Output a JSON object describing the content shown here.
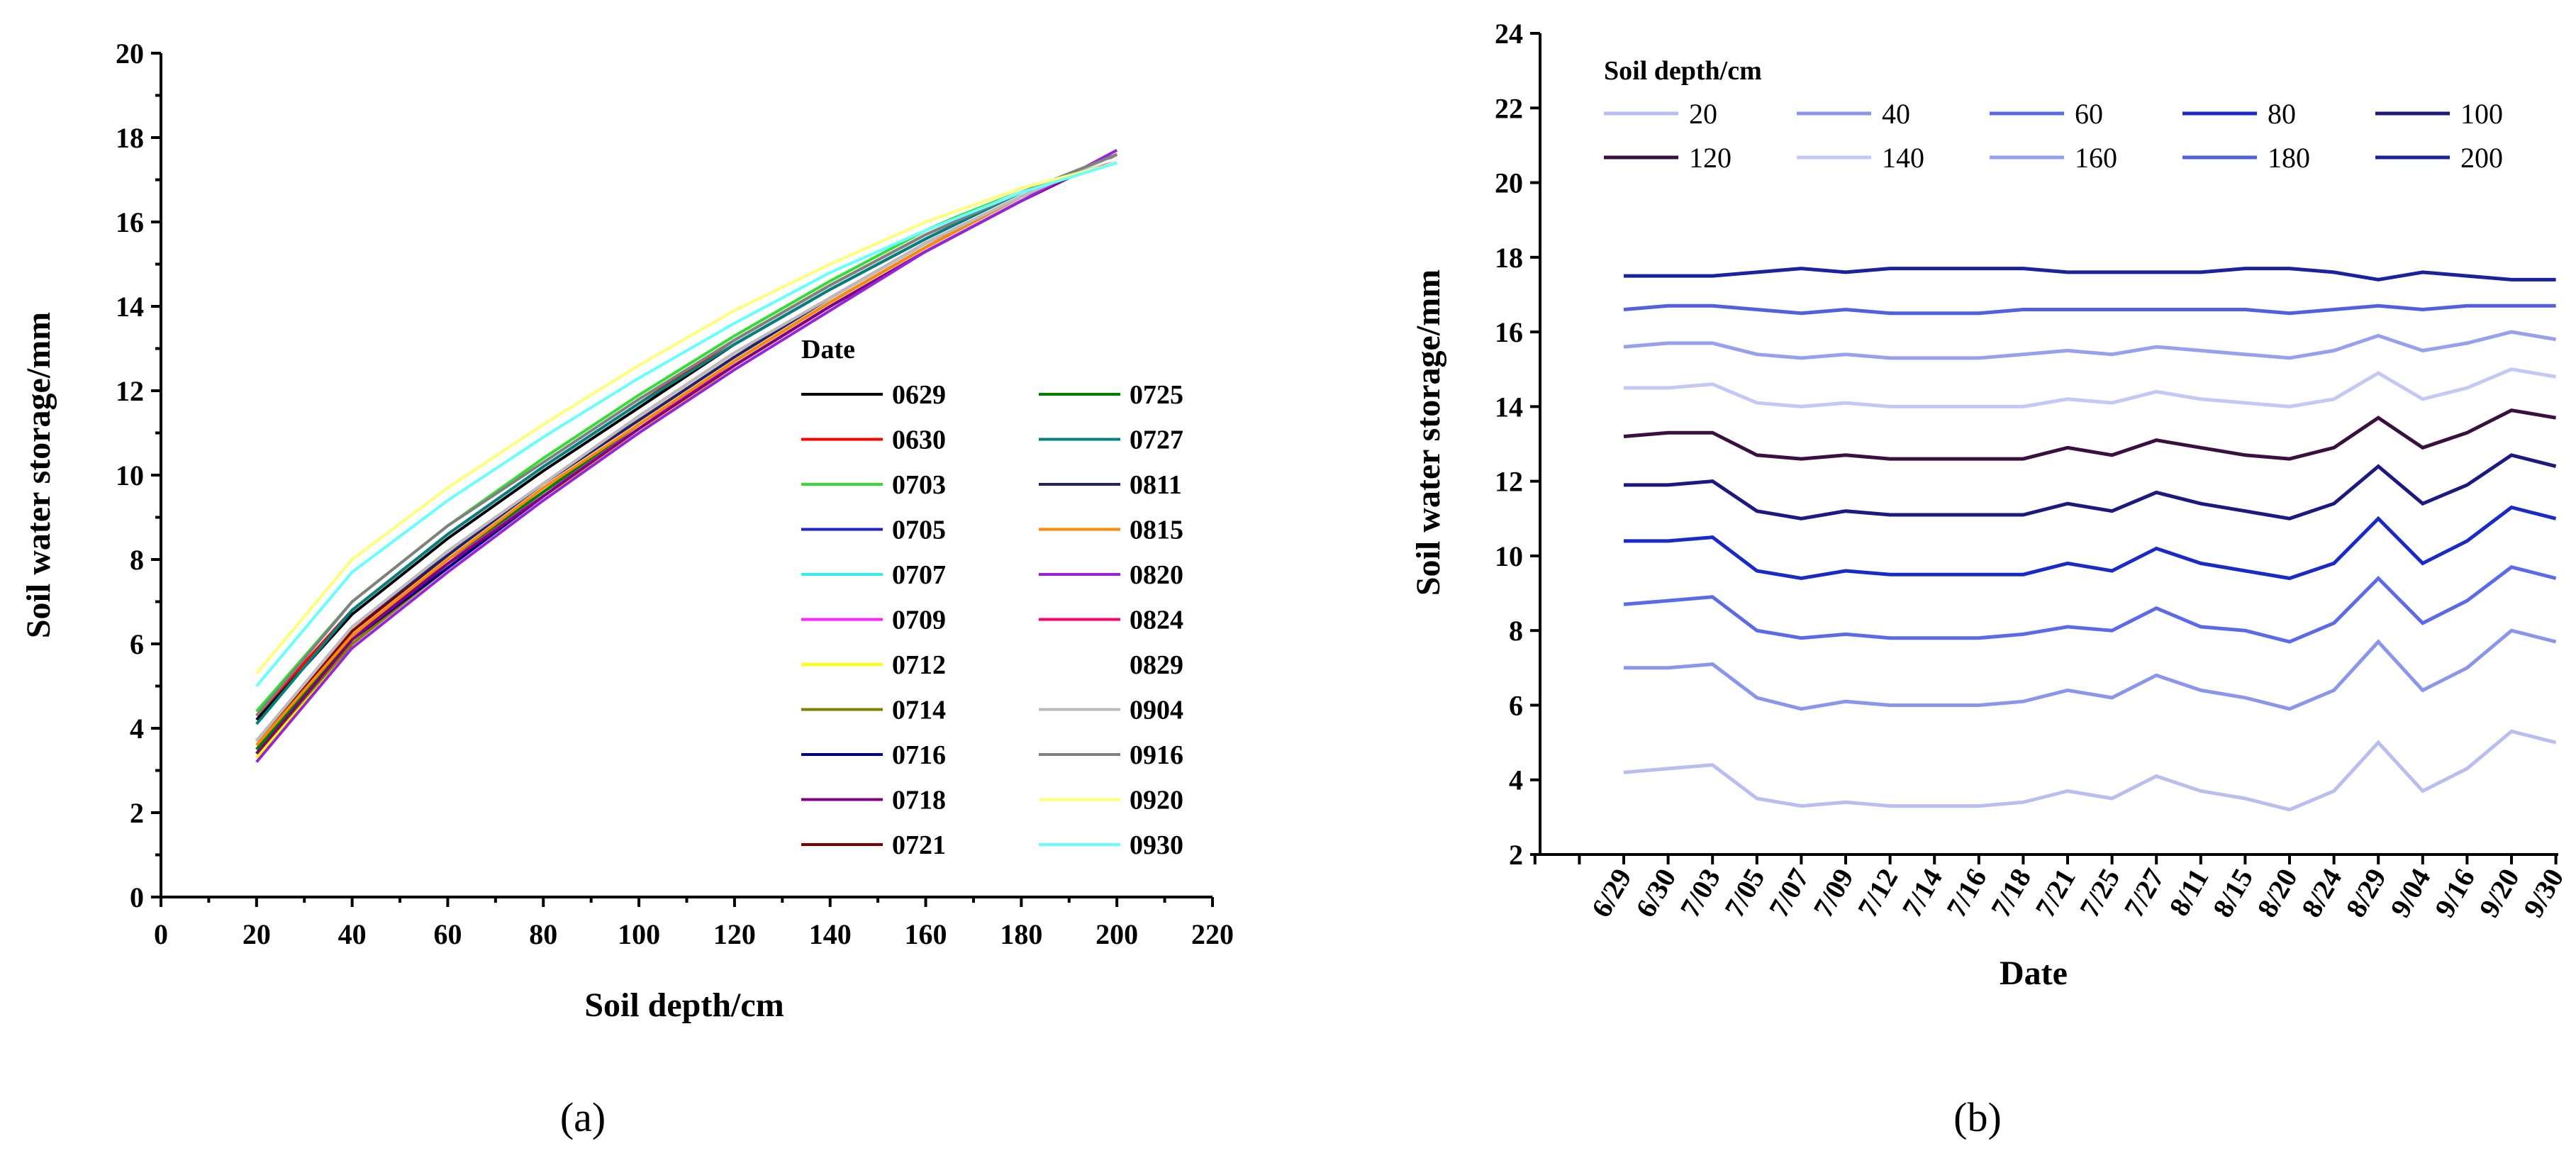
{
  "chart_data": [
    {
      "panel": "(a)",
      "type": "line",
      "xlabel": "Soil depth/cm",
      "ylabel": "Soil water storage/mm",
      "xlim": [
        0,
        220
      ],
      "ylim": [
        0,
        20
      ],
      "xticks": [
        0,
        20,
        40,
        60,
        80,
        100,
        120,
        140,
        160,
        180,
        200,
        220
      ],
      "yticks": [
        0,
        2,
        4,
        6,
        8,
        10,
        12,
        14,
        16,
        18,
        20
      ],
      "legend_title": "Date",
      "legend_position": "bottom-right",
      "x": [
        20,
        40,
        60,
        80,
        100,
        120,
        140,
        160,
        180,
        200
      ],
      "series": [
        {
          "name": "0629",
          "color": "#000000",
          "values": [
            4.2,
            6.7,
            8.5,
            10.1,
            11.6,
            13.1,
            14.4,
            15.6,
            16.7,
            17.5
          ]
        },
        {
          "name": "0630",
          "color": "#ff0000",
          "values": [
            4.3,
            6.8,
            8.6,
            10.2,
            11.7,
            13.2,
            14.5,
            15.7,
            16.7,
            17.5
          ]
        },
        {
          "name": "0703",
          "color": "#33dd33",
          "values": [
            4.4,
            7.0,
            8.8,
            10.4,
            11.9,
            13.3,
            14.6,
            15.8,
            16.8,
            17.5
          ]
        },
        {
          "name": "0705",
          "color": "#2222cc",
          "values": [
            3.5,
            6.2,
            7.9,
            9.6,
            11.2,
            12.7,
            14.1,
            15.4,
            16.6,
            17.6
          ]
        },
        {
          "name": "0707",
          "color": "#33eeee",
          "values": [
            3.3,
            6.0,
            7.8,
            9.5,
            11.0,
            12.6,
            14.0,
            15.3,
            16.5,
            17.6
          ]
        },
        {
          "name": "0709",
          "color": "#ff22ff",
          "values": [
            3.4,
            6.1,
            7.9,
            9.6,
            11.1,
            12.7,
            14.1,
            15.4,
            16.6,
            17.6
          ]
        },
        {
          "name": "0712",
          "color": "#ffff00",
          "values": [
            3.3,
            6.0,
            7.8,
            9.5,
            11.0,
            12.6,
            14.0,
            15.3,
            16.5,
            17.6
          ]
        },
        {
          "name": "0714",
          "color": "#808000",
          "values": [
            3.4,
            6.0,
            7.8,
            9.5,
            11.1,
            12.6,
            14.0,
            15.3,
            16.5,
            17.6
          ]
        },
        {
          "name": "0716",
          "color": "#000080",
          "values": [
            3.4,
            6.1,
            7.8,
            9.5,
            11.1,
            12.6,
            14.0,
            15.3,
            16.5,
            17.6
          ]
        },
        {
          "name": "0718",
          "color": "#800080",
          "values": [
            3.4,
            6.1,
            7.9,
            9.5,
            11.1,
            12.6,
            14.0,
            15.3,
            16.5,
            17.6
          ]
        },
        {
          "name": "0721",
          "color": "#800000",
          "values": [
            3.7,
            6.3,
            8.1,
            9.8,
            11.3,
            12.8,
            14.2,
            15.5,
            16.6,
            17.6
          ]
        },
        {
          "name": "0725",
          "color": "#008000",
          "values": [
            3.5,
            6.2,
            8.0,
            9.6,
            11.2,
            12.7,
            14.1,
            15.4,
            16.6,
            17.6
          ]
        },
        {
          "name": "0727",
          "color": "#008080",
          "values": [
            4.1,
            6.8,
            8.6,
            10.2,
            11.7,
            13.1,
            14.4,
            15.6,
            16.7,
            17.6
          ]
        },
        {
          "name": "0811",
          "color": "#222266",
          "values": [
            3.7,
            6.4,
            8.1,
            9.8,
            11.3,
            12.8,
            14.2,
            15.5,
            16.6,
            17.6
          ]
        },
        {
          "name": "0815",
          "color": "#ff8800",
          "values": [
            3.6,
            6.2,
            8.0,
            9.7,
            11.2,
            12.7,
            14.1,
            15.4,
            16.6,
            17.6
          ]
        },
        {
          "name": "0820",
          "color": "#9922dd",
          "values": [
            3.2,
            5.9,
            7.7,
            9.4,
            11.0,
            12.5,
            13.9,
            15.3,
            16.5,
            17.7
          ]
        },
        {
          "name": "0824",
          "color": "#ff0066",
          "values": [
            3.7,
            6.4,
            8.2,
            9.8,
            11.4,
            12.9,
            14.2,
            15.5,
            16.6,
            17.6
          ]
        },
        {
          "name": "0829",
          "color": "#ffffff",
          "values": [
            5.0,
            7.7,
            9.4,
            11.0,
            12.4,
            13.7,
            14.9,
            15.9,
            16.8,
            17.5
          ]
        },
        {
          "name": "0904",
          "color": "#bbbbbb",
          "values": [
            3.7,
            6.4,
            8.2,
            9.8,
            11.4,
            12.9,
            14.2,
            15.5,
            16.6,
            17.6
          ]
        },
        {
          "name": "0916",
          "color": "#808080",
          "values": [
            4.3,
            7.0,
            8.8,
            10.3,
            11.8,
            13.2,
            14.5,
            15.7,
            16.7,
            17.6
          ]
        },
        {
          "name": "0920",
          "color": "#ffff77",
          "values": [
            5.3,
            8.0,
            9.7,
            11.2,
            12.6,
            13.9,
            15.0,
            16.0,
            16.8,
            17.4
          ]
        },
        {
          "name": "0930",
          "color": "#66ffff",
          "values": [
            5.0,
            7.7,
            9.4,
            10.9,
            12.3,
            13.6,
            14.8,
            15.8,
            16.7,
            17.4
          ]
        }
      ]
    },
    {
      "panel": "(b)",
      "type": "line",
      "xlabel": "Date",
      "ylabel": "Soil water storage/mm",
      "ylim": [
        2,
        24
      ],
      "yticks": [
        2,
        4,
        6,
        8,
        10,
        12,
        14,
        16,
        18,
        20,
        22,
        24
      ],
      "legend_title": "Soil depth/cm",
      "legend_position": "top",
      "categories": [
        "6/29",
        "6/30",
        "7/03",
        "7/05",
        "7/07",
        "7/09",
        "7/12",
        "7/14",
        "7/16",
        "7/18",
        "7/21",
        "7/25",
        "7/27",
        "8/11",
        "8/15",
        "8/20",
        "8/24",
        "8/29",
        "9/04",
        "9/16",
        "9/20",
        "9/30"
      ],
      "series": [
        {
          "name": "20",
          "color": "#b8bff0",
          "values": [
            4.2,
            4.3,
            4.4,
            3.5,
            3.3,
            3.4,
            3.3,
            3.3,
            3.3,
            3.4,
            3.7,
            3.5,
            4.1,
            3.7,
            3.5,
            3.2,
            3.7,
            5.0,
            3.7,
            4.3,
            5.3,
            5.0
          ]
        },
        {
          "name": "40",
          "color": "#8a95ec",
          "values": [
            7.0,
            7.0,
            7.1,
            6.2,
            5.9,
            6.1,
            6.0,
            6.0,
            6.0,
            6.1,
            6.4,
            6.2,
            6.8,
            6.4,
            6.2,
            5.9,
            6.4,
            7.7,
            6.4,
            7.0,
            8.0,
            7.7
          ]
        },
        {
          "name": "60",
          "color": "#5a6ae8",
          "values": [
            8.7,
            8.8,
            8.9,
            8.0,
            7.8,
            7.9,
            7.8,
            7.8,
            7.8,
            7.9,
            8.1,
            8.0,
            8.6,
            8.1,
            8.0,
            7.7,
            8.2,
            9.4,
            8.2,
            8.8,
            9.7,
            9.4
          ]
        },
        {
          "name": "80",
          "color": "#1a2ac8",
          "values": [
            10.4,
            10.4,
            10.5,
            9.6,
            9.4,
            9.6,
            9.5,
            9.5,
            9.5,
            9.5,
            9.8,
            9.6,
            10.2,
            9.8,
            9.6,
            9.4,
            9.8,
            11.0,
            9.8,
            10.4,
            11.3,
            11.0
          ]
        },
        {
          "name": "100",
          "color": "#1a1a80",
          "values": [
            11.9,
            11.9,
            12.0,
            11.2,
            11.0,
            11.2,
            11.1,
            11.1,
            11.1,
            11.1,
            11.4,
            11.2,
            11.7,
            11.4,
            11.2,
            11.0,
            11.4,
            12.4,
            11.4,
            11.9,
            12.7,
            12.4
          ]
        },
        {
          "name": "120",
          "color": "#3a1040",
          "values": [
            13.2,
            13.3,
            13.3,
            12.7,
            12.6,
            12.7,
            12.6,
            12.6,
            12.6,
            12.6,
            12.9,
            12.7,
            13.1,
            12.9,
            12.7,
            12.6,
            12.9,
            13.7,
            12.9,
            13.3,
            13.9,
            13.7
          ]
        },
        {
          "name": "140",
          "color": "#c4c8f4",
          "values": [
            14.5,
            14.5,
            14.6,
            14.1,
            14.0,
            14.1,
            14.0,
            14.0,
            14.0,
            14.0,
            14.2,
            14.1,
            14.4,
            14.2,
            14.1,
            14.0,
            14.2,
            14.9,
            14.2,
            14.5,
            15.0,
            14.8
          ]
        },
        {
          "name": "160",
          "color": "#96a0ee",
          "values": [
            15.6,
            15.7,
            15.7,
            15.4,
            15.3,
            15.4,
            15.3,
            15.3,
            15.3,
            15.4,
            15.5,
            15.4,
            15.6,
            15.5,
            15.4,
            15.3,
            15.5,
            15.9,
            15.5,
            15.7,
            16.0,
            15.8
          ]
        },
        {
          "name": "180",
          "color": "#5060e0",
          "values": [
            16.6,
            16.7,
            16.7,
            16.6,
            16.5,
            16.6,
            16.5,
            16.5,
            16.5,
            16.6,
            16.6,
            16.6,
            16.6,
            16.6,
            16.6,
            16.5,
            16.6,
            16.7,
            16.6,
            16.7,
            16.7,
            16.7
          ]
        },
        {
          "name": "200",
          "color": "#1a22a0",
          "values": [
            17.5,
            17.5,
            17.5,
            17.6,
            17.7,
            17.6,
            17.7,
            17.7,
            17.7,
            17.7,
            17.6,
            17.6,
            17.6,
            17.6,
            17.7,
            17.7,
            17.6,
            17.4,
            17.6,
            17.5,
            17.4,
            17.4
          ]
        }
      ]
    }
  ]
}
